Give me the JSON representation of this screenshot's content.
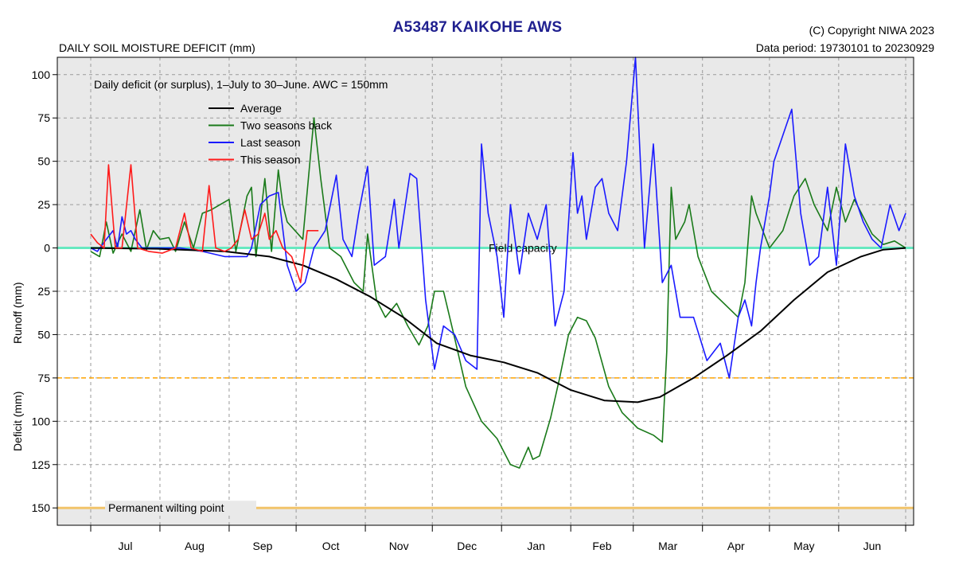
{
  "header": {
    "title": "A53487  KAIKOHE AWS",
    "subtitle": "DAILY SOIL MOISTURE DEFICIT (mm)",
    "copyright": "(C) Copyright NIWA  2023",
    "data_period": "Data period:  19730101  to  20230929"
  },
  "chart_data": {
    "type": "line",
    "annotation": "Daily deficit (or surplus), 1–July to 30–June.  AWC = 150mm",
    "ylabel_top": "Runoff (mm)",
    "ylabel_bottom": "Deficit (mm)",
    "ylim": [
      -110,
      160
    ],
    "y_axis_note": "values above 0 are runoff (surplus), values below 0 are deficit; ticks are printed as positive numbers",
    "yticks": [
      -100,
      -75,
      -50,
      -25,
      0,
      25,
      50,
      75,
      100,
      125,
      150
    ],
    "ytick_labels": [
      "100",
      "75",
      "50",
      "25",
      "0",
      "25",
      "50",
      "75",
      "100",
      "125",
      "150"
    ],
    "xlim": [
      0,
      365
    ],
    "months": [
      "Jul",
      "Aug",
      "Sep",
      "Oct",
      "Nov",
      "Dec",
      "Jan",
      "Feb",
      "Mar",
      "Apr",
      "May",
      "Jun"
    ],
    "month_starts": [
      0,
      31,
      62,
      92,
      123,
      153,
      184,
      215,
      243,
      274,
      304,
      335,
      365
    ],
    "grid": true,
    "legend_position": "top-left",
    "reference_lines": [
      {
        "label": "Field capacity",
        "y": 0,
        "color": "#66e8c0"
      },
      {
        "label": "",
        "y": 75,
        "color": "#ffa500"
      },
      {
        "label": "Permanent wilting point",
        "y": 150,
        "color": "#f2c46a"
      }
    ],
    "series": [
      {
        "name": "Average",
        "color": "#000000",
        "points": [
          [
            0,
            0
          ],
          [
            30,
            0.5
          ],
          [
            60,
            2
          ],
          [
            80,
            5
          ],
          [
            95,
            10
          ],
          [
            110,
            18
          ],
          [
            125,
            28
          ],
          [
            140,
            40
          ],
          [
            155,
            55
          ],
          [
            170,
            62
          ],
          [
            185,
            66
          ],
          [
            200,
            72
          ],
          [
            215,
            82
          ],
          [
            230,
            88
          ],
          [
            245,
            89
          ],
          [
            255,
            86
          ],
          [
            270,
            75
          ],
          [
            285,
            62
          ],
          [
            300,
            48
          ],
          [
            315,
            30
          ],
          [
            330,
            14
          ],
          [
            345,
            5
          ],
          [
            355,
            1
          ],
          [
            365,
            0
          ]
        ]
      },
      {
        "name": "Two seasons back",
        "color": "#1a7a1a",
        "points": [
          [
            0,
            2
          ],
          [
            4,
            5
          ],
          [
            7,
            -15
          ],
          [
            10,
            3
          ],
          [
            14,
            -8
          ],
          [
            18,
            2
          ],
          [
            22,
            -22
          ],
          [
            25,
            1
          ],
          [
            28,
            -10
          ],
          [
            31,
            -5
          ],
          [
            35,
            -6
          ],
          [
            38,
            2
          ],
          [
            42,
            -15
          ],
          [
            46,
            0
          ],
          [
            50,
            -20
          ],
          [
            54,
            -22
          ],
          [
            58,
            -25
          ],
          [
            62,
            -28
          ],
          [
            65,
            2
          ],
          [
            70,
            -30
          ],
          [
            72,
            -35
          ],
          [
            74,
            5
          ],
          [
            78,
            -40
          ],
          [
            81,
            2
          ],
          [
            84,
            -45
          ],
          [
            86,
            -25
          ],
          [
            88,
            -15
          ],
          [
            95,
            -5
          ],
          [
            100,
            -75
          ],
          [
            103,
            -40
          ],
          [
            107,
            0
          ],
          [
            112,
            5
          ],
          [
            118,
            20
          ],
          [
            122,
            25
          ],
          [
            124,
            -8
          ],
          [
            128,
            30
          ],
          [
            132,
            40
          ],
          [
            137,
            32
          ],
          [
            142,
            45
          ],
          [
            147,
            56
          ],
          [
            151,
            45
          ],
          [
            154,
            25
          ],
          [
            158,
            25
          ],
          [
            163,
            52
          ],
          [
            168,
            80
          ],
          [
            175,
            100
          ],
          [
            182,
            110
          ],
          [
            188,
            125
          ],
          [
            192,
            127
          ],
          [
            196,
            115
          ],
          [
            198,
            122
          ],
          [
            201,
            120
          ],
          [
            206,
            98
          ],
          [
            210,
            75
          ],
          [
            214,
            50
          ],
          [
            218,
            40
          ],
          [
            222,
            42
          ],
          [
            226,
            52
          ],
          [
            232,
            80
          ],
          [
            238,
            95
          ],
          [
            245,
            104
          ],
          [
            252,
            108
          ],
          [
            256,
            112
          ],
          [
            258,
            60
          ],
          [
            260,
            -35
          ],
          [
            262,
            -5
          ],
          [
            264,
            -10
          ],
          [
            266,
            -15
          ],
          [
            268,
            -25
          ],
          [
            272,
            5
          ],
          [
            278,
            25
          ],
          [
            286,
            35
          ],
          [
            290,
            40
          ],
          [
            293,
            20
          ],
          [
            296,
            -30
          ],
          [
            298,
            -20
          ],
          [
            304,
            0
          ],
          [
            310,
            -10
          ],
          [
            315,
            -30
          ],
          [
            320,
            -40
          ],
          [
            324,
            -25
          ],
          [
            330,
            -10
          ],
          [
            334,
            -35
          ],
          [
            338,
            -15
          ],
          [
            342,
            -28
          ],
          [
            346,
            -18
          ],
          [
            350,
            -8
          ],
          [
            355,
            -2
          ],
          [
            360,
            -4
          ],
          [
            365,
            0
          ]
        ]
      },
      {
        "name": "Last season",
        "color": "#1a1aff",
        "points": [
          [
            0,
            0
          ],
          [
            3,
            2
          ],
          [
            7,
            -5
          ],
          [
            10,
            -10
          ],
          [
            12,
            0
          ],
          [
            14,
            -18
          ],
          [
            16,
            -8
          ],
          [
            18,
            -10
          ],
          [
            20,
            -5
          ],
          [
            23,
            0
          ],
          [
            30,
            0
          ],
          [
            40,
            0
          ],
          [
            50,
            2
          ],
          [
            60,
            5
          ],
          [
            66,
            5
          ],
          [
            70,
            5
          ],
          [
            72,
            0
          ],
          [
            76,
            -25
          ],
          [
            80,
            -30
          ],
          [
            84,
            -32
          ],
          [
            88,
            10
          ],
          [
            92,
            25
          ],
          [
            96,
            20
          ],
          [
            100,
            0
          ],
          [
            105,
            -10
          ],
          [
            110,
            -42
          ],
          [
            113,
            -5
          ],
          [
            117,
            5
          ],
          [
            120,
            -20
          ],
          [
            124,
            -47
          ],
          [
            127,
            10
          ],
          [
            132,
            5
          ],
          [
            136,
            -28
          ],
          [
            138,
            0
          ],
          [
            143,
            -43
          ],
          [
            146,
            -40
          ],
          [
            150,
            30
          ],
          [
            154,
            70
          ],
          [
            158,
            45
          ],
          [
            163,
            50
          ],
          [
            168,
            65
          ],
          [
            173,
            70
          ],
          [
            175,
            -60
          ],
          [
            178,
            -20
          ],
          [
            182,
            5
          ],
          [
            185,
            40
          ],
          [
            188,
            -25
          ],
          [
            192,
            15
          ],
          [
            196,
            -20
          ],
          [
            200,
            -5
          ],
          [
            204,
            -25
          ],
          [
            208,
            45
          ],
          [
            212,
            25
          ],
          [
            216,
            -55
          ],
          [
            218,
            -20
          ],
          [
            220,
            -30
          ],
          [
            222,
            -5
          ],
          [
            226,
            -35
          ],
          [
            229,
            -40
          ],
          [
            232,
            -20
          ],
          [
            236,
            -10
          ],
          [
            240,
            -50
          ],
          [
            244,
            -110
          ],
          [
            248,
            0
          ],
          [
            252,
            -60
          ],
          [
            256,
            20
          ],
          [
            260,
            10
          ],
          [
            264,
            40
          ],
          [
            270,
            40
          ],
          [
            276,
            65
          ],
          [
            282,
            55
          ],
          [
            286,
            75
          ],
          [
            290,
            40
          ],
          [
            293,
            30
          ],
          [
            296,
            45
          ],
          [
            298,
            20
          ],
          [
            300,
            0
          ],
          [
            304,
            -30
          ],
          [
            306,
            -50
          ],
          [
            310,
            -65
          ],
          [
            314,
            -80
          ],
          [
            318,
            -20
          ],
          [
            322,
            10
          ],
          [
            326,
            5
          ],
          [
            330,
            -35
          ],
          [
            334,
            10
          ],
          [
            338,
            -60
          ],
          [
            342,
            -30
          ],
          [
            346,
            -15
          ],
          [
            350,
            -5
          ],
          [
            354,
            0
          ],
          [
            358,
            -25
          ],
          [
            362,
            -10
          ],
          [
            365,
            -20
          ]
        ]
      },
      {
        "name": "This season",
        "color": "#ff1a1a",
        "points": [
          [
            0,
            -8
          ],
          [
            3,
            -3
          ],
          [
            6,
            0
          ],
          [
            8,
            -48
          ],
          [
            11,
            0
          ],
          [
            14,
            0
          ],
          [
            18,
            -48
          ],
          [
            21,
            0
          ],
          [
            26,
            2
          ],
          [
            32,
            3
          ],
          [
            38,
            0
          ],
          [
            42,
            -20
          ],
          [
            45,
            0
          ],
          [
            50,
            2
          ],
          [
            53,
            -36
          ],
          [
            56,
            0
          ],
          [
            60,
            2
          ],
          [
            63,
            0
          ],
          [
            66,
            -5
          ],
          [
            69,
            -22
          ],
          [
            72,
            -5
          ],
          [
            75,
            -8
          ],
          [
            78,
            -20
          ],
          [
            80,
            -5
          ],
          [
            83,
            -10
          ],
          [
            86,
            0
          ],
          [
            90,
            5
          ],
          [
            94,
            20
          ],
          [
            97,
            -10
          ],
          [
            102,
            -10
          ]
        ]
      }
    ]
  }
}
